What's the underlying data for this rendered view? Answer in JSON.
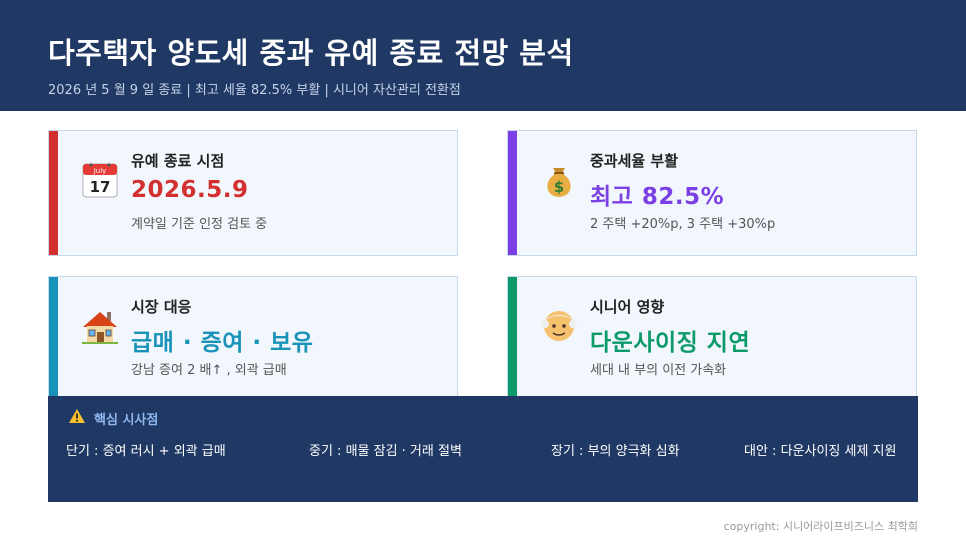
{
  "header": {
    "title": "다주택자 양도세 중과 유예 종료 전망 분석",
    "subtitle": "2026 년  5 월  9 일 종료  |  최고 세율  82.5%  부활  |  시니어 자산관리 전환점"
  },
  "cards": [
    {
      "label": "유예 종료 시점",
      "value": "2026.5.9",
      "desc": "계약일 기준 인정 검토 중",
      "accent": "#d32f2f",
      "value_color": "#d32f2f",
      "icon": "calendar-icon",
      "icon_month": "July",
      "icon_day": "17"
    },
    {
      "label": "중과세율 부활",
      "value": "최고  82.5%",
      "desc": "2 주택  +20%p, 3 주택  +30%p",
      "accent": "#7b3fe4",
      "value_color": "#7b3fe4",
      "icon": "money-bag-icon"
    },
    {
      "label": "시장 대응",
      "value": "급매 · 증여 · 보유",
      "desc": "강남 증여  2 배↑ ,  외곽 급매",
      "accent": "#1a93b8",
      "value_color": "#1a93b8",
      "icon": "house-icon"
    },
    {
      "label": "시니어 영향",
      "value": "다운사이징 지연",
      "desc": "세대 내 부의 이전 가속화",
      "accent": "#0c9a6a",
      "value_color": "#0c9a6a",
      "icon": "older-person-icon"
    }
  ],
  "insight": {
    "title": "핵심 시사점",
    "items": [
      "단기 :  증여 러시  +  외곽 급매",
      "중기 :  매물 잠김  ·  거래 절벽",
      "장기 :  부의 양극화 심화",
      "대안 :  다운사이징 세제 지원"
    ]
  },
  "footer": {
    "copyright": "copyright:  시니어라이프비즈니스 최학희"
  }
}
